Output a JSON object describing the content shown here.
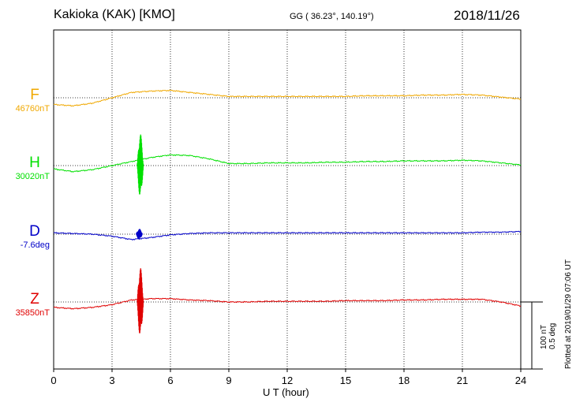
{
  "header": {
    "title": "Kakioka (KAK)  [KMO]",
    "coords": "GG ( 36.23°, 140.19°)",
    "date": "2018/11/26"
  },
  "scale_bar": {
    "line1": "100 nT",
    "line2": "0.5 deg"
  },
  "plotted_note": "Plotted at 2019/01/29 07:06 UT",
  "chart_data": {
    "type": "line",
    "title": "Kakioka (KAK)  [KMO]",
    "xlabel": "U T (hour)",
    "xlim": [
      0,
      24
    ],
    "xticks": [
      0,
      3,
      6,
      9,
      12,
      15,
      18,
      21,
      24
    ],
    "grid": true,
    "series": [
      {
        "name": "F",
        "base_label": "46760nT",
        "color": "#f0a800",
        "x": [
          0,
          1,
          2,
          3,
          4,
          5,
          6,
          7,
          8,
          9,
          10,
          11,
          12,
          13,
          14,
          15,
          16,
          17,
          18,
          19,
          20,
          21,
          22,
          23,
          24
        ],
        "values": [
          -10,
          -12,
          -8,
          0,
          8,
          10,
          11,
          8,
          5,
          2,
          2,
          2,
          2,
          2,
          2,
          2,
          3,
          3,
          3,
          4,
          4,
          5,
          4,
          1,
          -2
        ],
        "spikes": []
      },
      {
        "name": "H",
        "base_label": "30020nT",
        "color": "#00e000",
        "x": [
          0,
          1,
          2,
          3,
          4,
          5,
          6,
          7,
          8,
          9,
          10,
          11,
          12,
          13,
          14,
          15,
          16,
          17,
          18,
          19,
          20,
          21,
          22,
          23,
          24
        ],
        "values": [
          -5,
          -9,
          -6,
          0,
          6,
          12,
          16,
          15,
          10,
          3,
          3,
          4,
          4,
          4,
          5,
          5,
          6,
          6,
          7,
          7,
          7,
          8,
          7,
          4,
          1
        ],
        "spikes": [
          {
            "x": 4.45,
            "amplitude": 48
          }
        ]
      },
      {
        "name": "D",
        "base_label": "-7.6deg",
        "color": "#0000c8",
        "x": [
          0,
          1,
          2,
          3,
          4,
          5,
          6,
          7,
          8,
          9,
          10,
          11,
          12,
          13,
          14,
          15,
          16,
          17,
          18,
          19,
          20,
          21,
          22,
          23,
          24
        ],
        "values": [
          2,
          1,
          0,
          -3,
          -8,
          -5,
          -1,
          1,
          2,
          2,
          2,
          2,
          2,
          2,
          2,
          2,
          2,
          2,
          2,
          2,
          2,
          2,
          3,
          3,
          4
        ],
        "spikes": [
          {
            "x": 4.4,
            "amplitude": 8
          }
        ]
      },
      {
        "name": "Z",
        "base_label": "35850nT",
        "color": "#e00000",
        "x": [
          0,
          1,
          2,
          3,
          4,
          5,
          6,
          7,
          8,
          9,
          10,
          11,
          12,
          13,
          14,
          15,
          16,
          17,
          18,
          19,
          20,
          21,
          22,
          23,
          24
        ],
        "values": [
          -8,
          -10,
          -8,
          -4,
          3,
          5,
          5,
          3,
          2,
          0,
          0,
          1,
          1,
          1,
          1,
          2,
          2,
          2,
          3,
          3,
          4,
          4,
          4,
          0,
          -6
        ],
        "spikes": [
          {
            "x": 4.45,
            "amplitude": 52
          }
        ]
      }
    ]
  }
}
